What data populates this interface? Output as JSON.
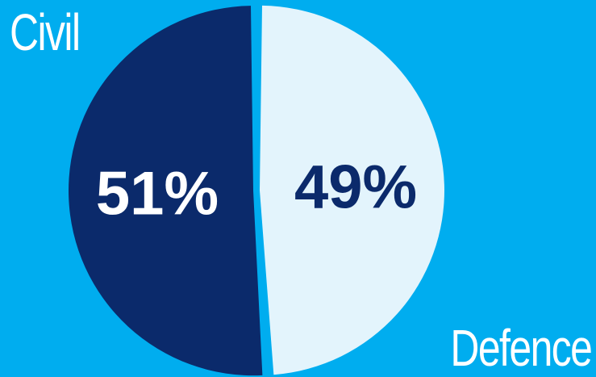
{
  "chart_data": {
    "type": "pie",
    "slices": [
      {
        "label": "Civil",
        "value": 51,
        "value_label": "51%",
        "color": "#0b2a6b",
        "text_color": "#ffffff"
      },
      {
        "label": "Defence",
        "value": 49,
        "value_label": "49%",
        "color": "#e3f4fc",
        "text_color": "#0b2a6b"
      }
    ],
    "background": "#00adef"
  }
}
